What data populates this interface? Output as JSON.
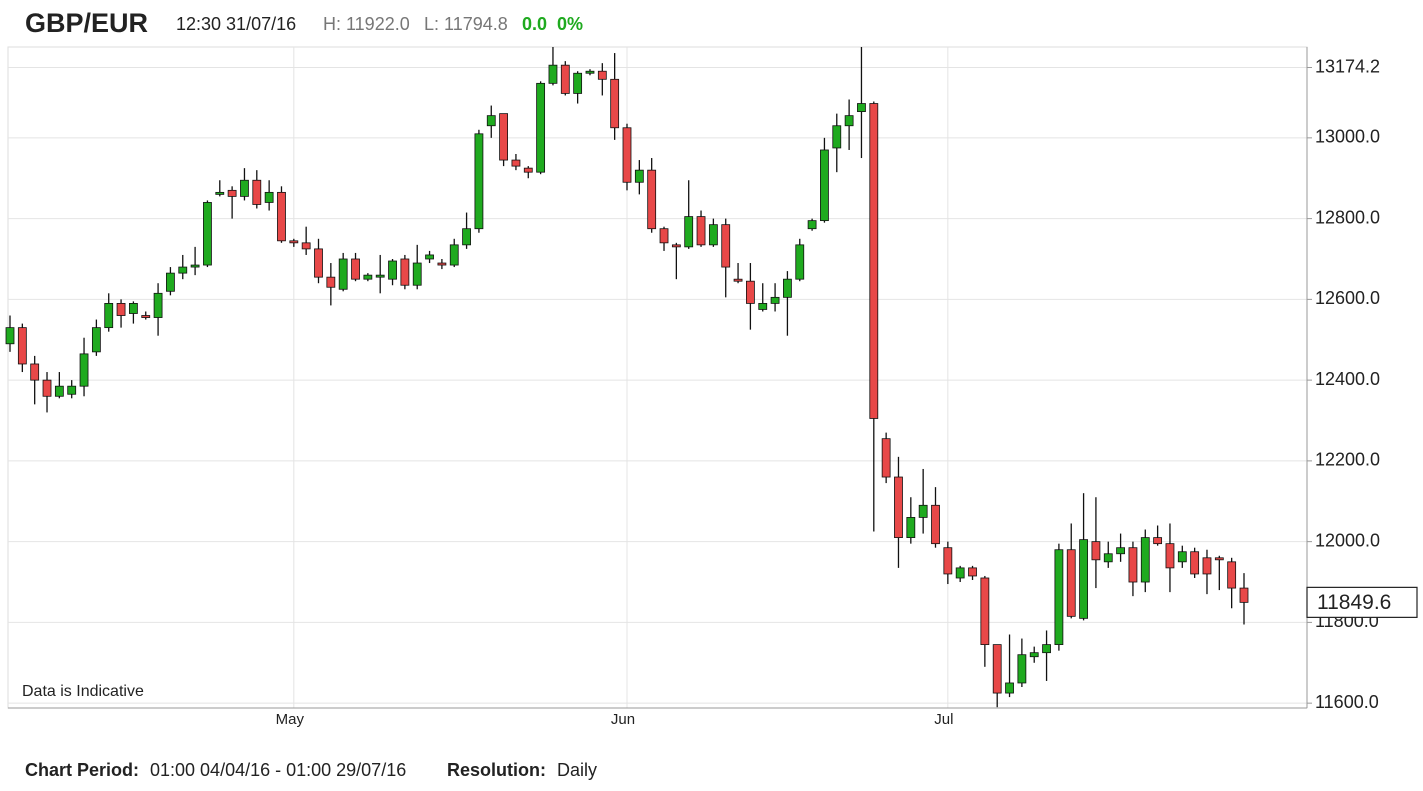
{
  "chart_data": {
    "type": "candlestick",
    "title": "GBP/EUR",
    "header": {
      "time": "12:30 31/07/16",
      "high": "H: 11922.0",
      "low": "L: 11794.8",
      "change": "0.0",
      "change_pct": "0%"
    },
    "annotation": "Data is Indicative",
    "footer": {
      "period_label": "Chart Period:",
      "period": "01:00 04/04/16 - 01:00 29/07/16",
      "resolution_label": "Resolution:",
      "resolution": "Daily"
    },
    "last_price": {
      "value": 11849.6,
      "label": "11849.6"
    },
    "up_color": "#1faa1f",
    "down_color": "#e84848",
    "grid": true,
    "ylim": [
      11588,
      13225
    ],
    "yticks": [
      {
        "value": 11600,
        "label": "11600.0"
      },
      {
        "value": 11800,
        "label": "11800.0"
      },
      {
        "value": 12000,
        "label": "12000.0"
      },
      {
        "value": 12200,
        "label": "12200.0"
      },
      {
        "value": 12400,
        "label": "12400.0"
      },
      {
        "value": 12600,
        "label": "12600.0"
      },
      {
        "value": 12800,
        "label": "12800.0"
      },
      {
        "value": 13000,
        "label": "13000.0"
      },
      {
        "value": 13174.2,
        "label": "13174.2"
      }
    ],
    "categories": [
      null,
      null,
      null,
      null,
      null,
      null,
      null,
      null,
      null,
      null,
      null,
      null,
      null,
      null,
      null,
      null,
      null,
      null,
      null,
      null,
      null,
      null,
      null,
      "May",
      null,
      null,
      null,
      null,
      null,
      null,
      null,
      null,
      null,
      null,
      null,
      null,
      null,
      null,
      null,
      null,
      null,
      null,
      null,
      null,
      null,
      null,
      null,
      null,
      null,
      null,
      "Jun",
      null,
      null,
      null,
      null,
      null,
      null,
      null,
      null,
      null,
      null,
      null,
      null,
      null,
      null,
      null,
      null,
      null,
      null,
      null,
      null,
      null,
      null,
      null,
      null,
      null,
      "Jul",
      null,
      null,
      null,
      null,
      null,
      null,
      null,
      null,
      null,
      null,
      null,
      null,
      null,
      null,
      null,
      null,
      null,
      null,
      null,
      null,
      null,
      null,
      null,
      null
    ],
    "open": [
      12490,
      12530,
      12440,
      12400,
      12360,
      12365,
      12385,
      12470,
      12530,
      12590,
      12565,
      12560,
      12555,
      12620,
      12665,
      12680,
      12685,
      12860,
      12870,
      12855,
      12895,
      12840,
      12865,
      12745,
      12740,
      12725,
      12655,
      12625,
      12700,
      12650,
      12655,
      12650,
      12700,
      12635,
      12700,
      12690,
      12685,
      12735,
      12775,
      13030,
      13060,
      12945,
      12925,
      12915,
      13135,
      13180,
      13110,
      13160,
      13165,
      13145,
      13025,
      12890,
      12920,
      12775,
      12735,
      12730,
      12805,
      12735,
      12785,
      12650,
      12645,
      12575,
      12590,
      12605,
      12650,
      12775,
      12795,
      12975,
      13030,
      13065,
      13085,
      12255,
      12160,
      12010,
      12060,
      12090,
      11985,
      11910,
      11935,
      11910,
      11745,
      11625,
      11650,
      11715,
      11725,
      11745,
      11980,
      11810,
      12000,
      11950,
      11970,
      11985,
      11900,
      12010,
      11995,
      11950,
      11975,
      11960,
      11960,
      11950,
      11885
    ],
    "high": [
      12560,
      12540,
      12460,
      12420,
      12420,
      12400,
      12505,
      12550,
      12615,
      12600,
      12595,
      12570,
      12640,
      12680,
      12710,
      12730,
      12845,
      12895,
      12880,
      12925,
      12920,
      12895,
      12880,
      12750,
      12780,
      12750,
      12690,
      12715,
      12715,
      12665,
      12710,
      12700,
      12710,
      12735,
      12720,
      12700,
      12750,
      12815,
      13020,
      13080,
      13060,
      12960,
      12930,
      13140,
      13225,
      13190,
      13165,
      13170,
      13185,
      13210,
      13035,
      12945,
      12950,
      12780,
      12740,
      12895,
      12820,
      12800,
      12800,
      12690,
      12690,
      12640,
      12640,
      12670,
      12750,
      12800,
      13000,
      13060,
      13095,
      13225,
      13090,
      12270,
      12210,
      12110,
      12180,
      12135,
      12000,
      11940,
      11940,
      11915,
      11745,
      11770,
      11760,
      11740,
      11780,
      11995,
      12045,
      12120,
      12110,
      12000,
      12020,
      12000,
      12030,
      12040,
      12045,
      11990,
      11985,
      11980,
      11965,
      11960,
      11922.0
    ],
    "low": [
      12470,
      12420,
      12340,
      12320,
      12355,
      12355,
      12360,
      12460,
      12520,
      12530,
      12540,
      12550,
      12510,
      12610,
      12650,
      12660,
      12680,
      12855,
      12800,
      12845,
      12825,
      12820,
      12740,
      12730,
      12710,
      12640,
      12585,
      12620,
      12645,
      12645,
      12615,
      12635,
      12625,
      12625,
      12690,
      12675,
      12680,
      12725,
      12765,
      13000,
      12930,
      12920,
      12900,
      12910,
      13130,
      13105,
      13085,
      13155,
      13105,
      12995,
      12870,
      12860,
      12765,
      12720,
      12650,
      12725,
      12730,
      12730,
      12605,
      12640,
      12525,
      12570,
      12570,
      12510,
      12645,
      12770,
      12790,
      12915,
      12970,
      12950,
      12025,
      12145,
      11935,
      11995,
      12020,
      11985,
      11895,
      11900,
      11905,
      11690,
      11590,
      11615,
      11640,
      11700,
      11655,
      11730,
      11810,
      11805,
      11885,
      11935,
      11950,
      11865,
      11875,
      11990,
      11875,
      11935,
      11910,
      11870,
      11880,
      11835,
      11794.8
    ],
    "close": [
      12530,
      12440,
      12400,
      12360,
      12385,
      12385,
      12465,
      12530,
      12590,
      12560,
      12590,
      12555,
      12615,
      12665,
      12680,
      12685,
      12840,
      12865,
      12855,
      12895,
      12835,
      12865,
      12745,
      12740,
      12725,
      12655,
      12630,
      12700,
      12650,
      12660,
      12660,
      12695,
      12635,
      12690,
      12710,
      12685,
      12735,
      12775,
      13010,
      13055,
      12945,
      12930,
      12915,
      13135,
      13180,
      13110,
      13160,
      13165,
      13145,
      13025,
      12890,
      12920,
      12775,
      12740,
      12730,
      12805,
      12735,
      12785,
      12680,
      12645,
      12590,
      12590,
      12605,
      12650,
      12735,
      12795,
      12970,
      13030,
      13055,
      13085,
      12305,
      12160,
      12010,
      12060,
      12090,
      11995,
      11920,
      11935,
      11915,
      11745,
      11625,
      11650,
      11720,
      11725,
      11745,
      11980,
      11815,
      12005,
      11955,
      11970,
      11985,
      11900,
      12010,
      11995,
      11935,
      11975,
      11920,
      11920,
      11955,
      11885,
      11849.6
    ]
  }
}
